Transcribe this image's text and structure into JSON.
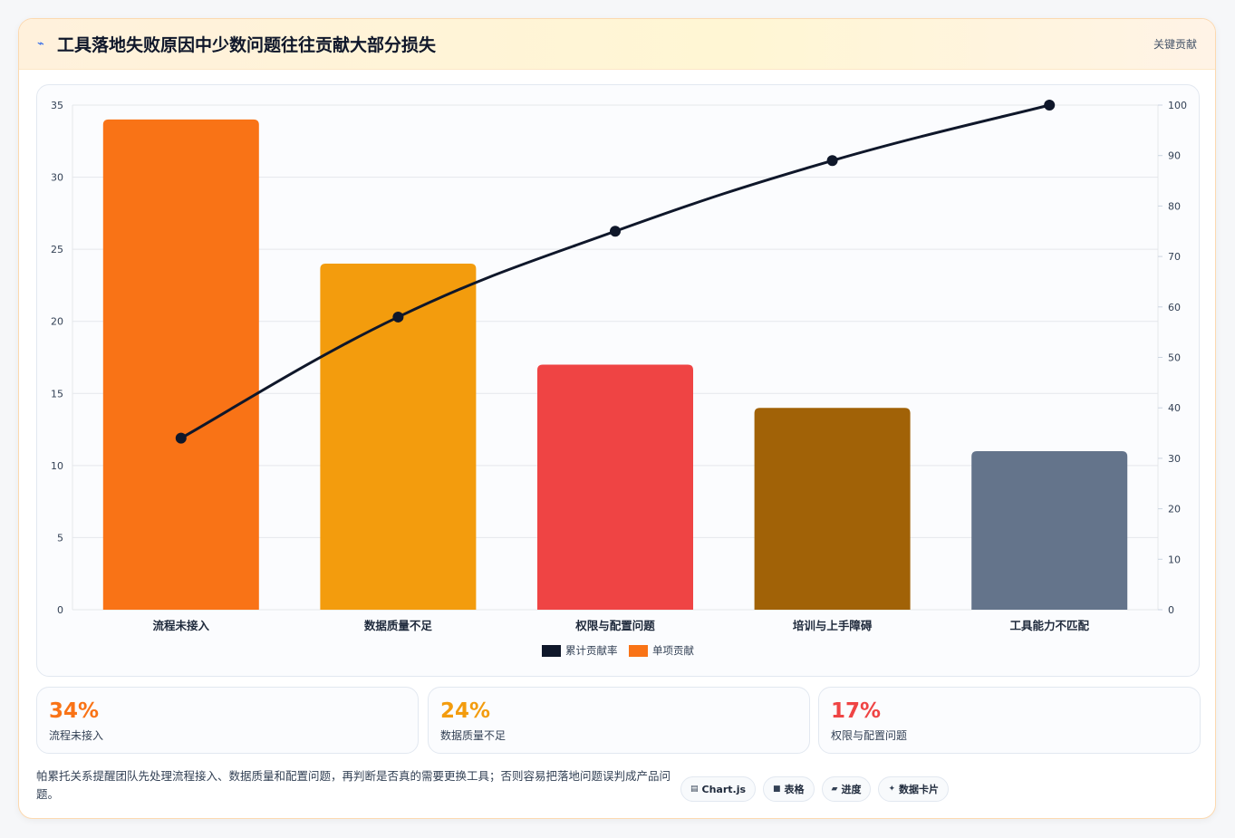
{
  "header": {
    "icon": "lightning-icon",
    "title": "工具落地失败原因中少数问题往往贡献大部分损失",
    "tag": "关键贡献"
  },
  "chart_data": {
    "type": "bar",
    "categories": [
      "流程未接入",
      "数据质量不足",
      "权限与配置问题",
      "培训与上手障碍",
      "工具能力不匹配"
    ],
    "series": [
      {
        "name": "单项贡献",
        "type": "bar",
        "axis": "left",
        "values": [
          34,
          24,
          17,
          14,
          11
        ],
        "colors": [
          "#f97316",
          "#f39c0d",
          "#ef4444",
          "#a16207",
          "#64748b"
        ]
      },
      {
        "name": "累计贡献率",
        "type": "line",
        "axis": "right",
        "values": [
          34,
          58,
          75,
          89,
          100
        ],
        "color": "#0f172a"
      }
    ],
    "ylim": [
      0,
      35
    ],
    "y_ticks": [
      0,
      5,
      10,
      15,
      20,
      25,
      30,
      35
    ],
    "y2lim": [
      0,
      100
    ],
    "y2_ticks": [
      0,
      10,
      20,
      30,
      40,
      50,
      60,
      70,
      80,
      90,
      100
    ],
    "grid": true,
    "legend": {
      "placement": "bottom",
      "entries": [
        {
          "label": "累计贡献率",
          "color": "#0f172a"
        },
        {
          "label": "单项贡献",
          "color": "#f97316"
        }
      ]
    }
  },
  "stats": [
    {
      "value": "34%",
      "label": "流程未接入",
      "color": "#f97316"
    },
    {
      "value": "24%",
      "label": "数据质量不足",
      "color": "#f39c0d"
    },
    {
      "value": "17%",
      "label": "权限与配置问题",
      "color": "#ef4444"
    }
  ],
  "footer": {
    "text": "帕累托关系提醒团队先处理流程接入、数据质量和配置问题，再判断是否真的需要更换工具；否则容易把落地问题误判成产品问题。"
  },
  "badges": [
    {
      "icon": "▤",
      "icon_name": "chart-icon",
      "label": "Chart.js"
    },
    {
      "icon": "■",
      "icon_name": "table-icon",
      "label": "表格"
    },
    {
      "icon": "▰",
      "icon_name": "progress-icon",
      "label": "进度"
    },
    {
      "icon": "✦",
      "icon_name": "sparkle-icon",
      "label": "数据卡片"
    }
  ]
}
